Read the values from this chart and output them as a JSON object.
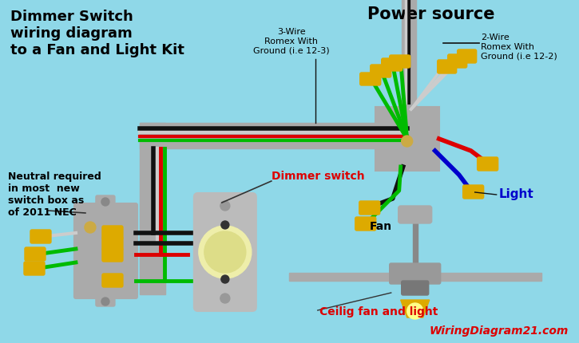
{
  "bg_color": "#8fd8e8",
  "title_left": "Dimmer Switch\nwiring diagram\nto a Fan and Light Kit",
  "title_right": "Power source",
  "label_3wire": "3-Wire\nRomex With\nGround (i.e 12-3)",
  "label_2wire": "2-Wire\nRomex With\nGround (i.e 12-2)",
  "label_neutral": "Neutral required\nin most  new\nswitch box as\nof 2011 NEC",
  "label_dimmer": "Dimmer switch",
  "label_fan": "Fan",
  "label_light": "Light",
  "label_ceilig": "Ceilig fan and light",
  "label_watermark": "WiringDiagram21.com",
  "wire_black": "#111111",
  "wire_white": "#cccccc",
  "wire_red": "#dd0000",
  "wire_green": "#00bb00",
  "wire_blue": "#0000cc",
  "wire_gray": "#888888",
  "connector_color": "#ddaa00",
  "box_color": "#aaaaaa",
  "box_dark": "#888888",
  "dimmer_bg": "#bbbbbb",
  "dimmer_knob_outer": "#eeeeaa",
  "dimmer_knob_inner": "#dddd88",
  "fan_blade_color": "#aaaaaa",
  "fan_motor_color": "#999999",
  "fan_hub_color": "#777777",
  "light_kit_color": "#ddaa00",
  "canopy_color": "#aaaaaa"
}
